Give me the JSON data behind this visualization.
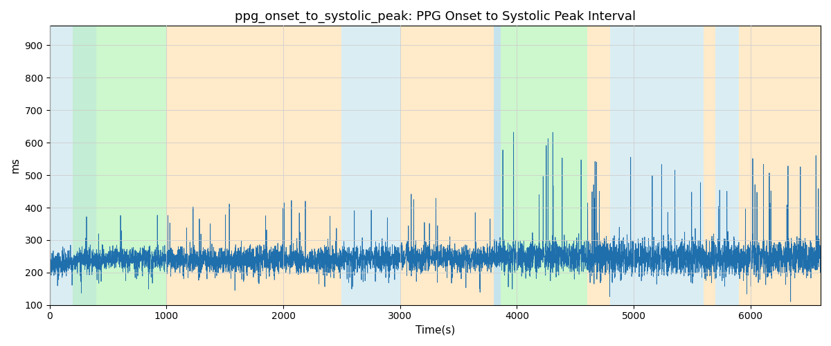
{
  "title": "ppg_onset_to_systolic_peak: PPG Onset to Systolic Peak Interval",
  "xlabel": "Time(s)",
  "ylabel": "ms",
  "xlim": [
    0,
    6600
  ],
  "ylim": [
    100,
    960
  ],
  "yticks": [
    100,
    200,
    300,
    400,
    500,
    600,
    700,
    800,
    900
  ],
  "xticks": [
    0,
    1000,
    2000,
    3000,
    4000,
    5000,
    6000
  ],
  "line_color": "#1f6fad",
  "line_width": 0.6,
  "bg_color": "#ffffff",
  "grid_color": "#cccccc",
  "title_fontsize": 13,
  "label_fontsize": 11,
  "regions": [
    {
      "start": 0,
      "end": 200,
      "color": "#add8e6",
      "alpha": 0.45
    },
    {
      "start": 200,
      "end": 1000,
      "color": "#90ee90",
      "alpha": 0.45
    },
    {
      "start": 200,
      "end": 400,
      "color": "#add8e6",
      "alpha": 0.3
    },
    {
      "start": 1000,
      "end": 2500,
      "color": "#ffdaa0",
      "alpha": 0.55
    },
    {
      "start": 2500,
      "end": 3000,
      "color": "#add8e6",
      "alpha": 0.45
    },
    {
      "start": 3000,
      "end": 3800,
      "color": "#ffdaa0",
      "alpha": 0.55
    },
    {
      "start": 3800,
      "end": 3860,
      "color": "#add8e6",
      "alpha": 0.45
    },
    {
      "start": 3860,
      "end": 4600,
      "color": "#90ee90",
      "alpha": 0.45
    },
    {
      "start": 3800,
      "end": 3860,
      "color": "#add8e6",
      "alpha": 0.45
    },
    {
      "start": 4600,
      "end": 4800,
      "color": "#ffdaa0",
      "alpha": 0.55
    },
    {
      "start": 4800,
      "end": 5600,
      "color": "#add8e6",
      "alpha": 0.45
    },
    {
      "start": 5600,
      "end": 5700,
      "color": "#ffdaa0",
      "alpha": 0.55
    },
    {
      "start": 5700,
      "end": 5900,
      "color": "#add8e6",
      "alpha": 0.45
    },
    {
      "start": 5900,
      "end": 6600,
      "color": "#ffdaa0",
      "alpha": 0.55
    }
  ],
  "seed": 42,
  "n_points": 6600,
  "signal_segments": [
    {
      "start": 0,
      "end": 200,
      "base": 230,
      "noise": 40,
      "spike_prob": 0.005,
      "spike_max": 150
    },
    {
      "start": 200,
      "end": 1000,
      "base": 240,
      "noise": 35,
      "spike_prob": 0.005,
      "spike_max": 120
    },
    {
      "start": 1000,
      "end": 2500,
      "base": 240,
      "noise": 40,
      "spike_prob": 0.01,
      "spike_max": 180
    },
    {
      "start": 2500,
      "end": 3800,
      "base": 245,
      "noise": 40,
      "spike_prob": 0.01,
      "spike_max": 200
    },
    {
      "start": 3800,
      "end": 4600,
      "base": 250,
      "noise": 50,
      "spike_prob": 0.02,
      "spike_max": 400
    },
    {
      "start": 4600,
      "end": 5100,
      "base": 245,
      "noise": 60,
      "spike_prob": 0.02,
      "spike_max": 280
    },
    {
      "start": 5100,
      "end": 6600,
      "base": 245,
      "noise": 55,
      "spike_prob": 0.015,
      "spike_max": 300
    }
  ]
}
